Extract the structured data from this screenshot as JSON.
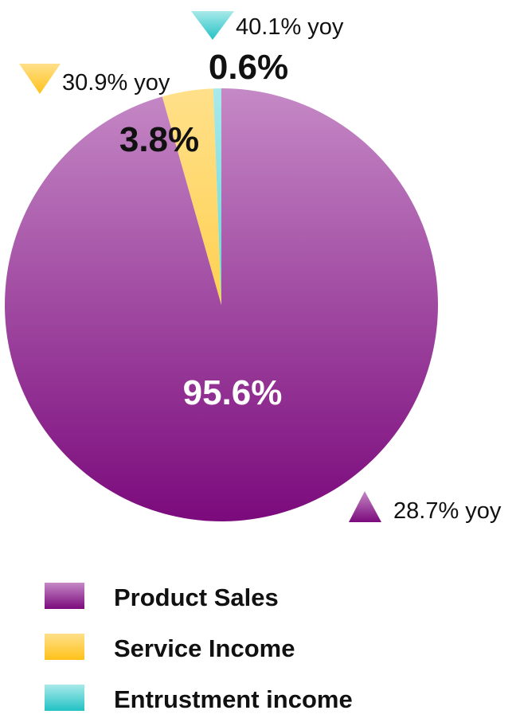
{
  "chart_data": {
    "type": "pie",
    "title": "",
    "slices": [
      {
        "name": "Product Sales",
        "value": 95.6,
        "label": "95.6%",
        "yoy": "28.7% yoy",
        "trend": "up",
        "color_top": "#c589c6",
        "color_bottom": "#7b0a7c"
      },
      {
        "name": "Service Income",
        "value": 3.8,
        "label": "3.8%",
        "yoy": "30.9% yoy",
        "trend": "down",
        "color_top": "#ffe08a",
        "color_bottom": "#ffc21a"
      },
      {
        "name": "Entrustment income",
        "value": 0.6,
        "label": "0.6%",
        "yoy": "40.1% yoy",
        "trend": "down",
        "color_top": "#a9e9ea",
        "color_bottom": "#22c2c4"
      }
    ],
    "legend": {
      "position": "bottom"
    }
  }
}
